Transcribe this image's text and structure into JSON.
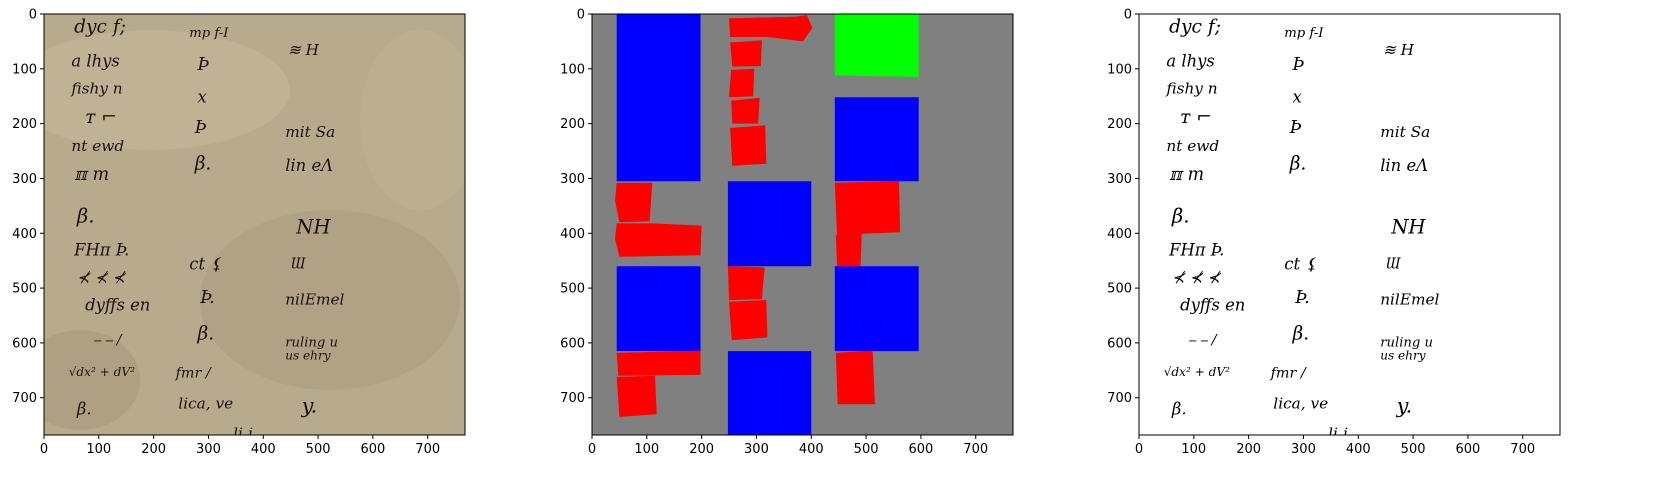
{
  "panels": [
    {
      "id": "original",
      "xlim": [
        0,
        768
      ],
      "ylim": [
        768,
        0
      ],
      "xticks": [
        "0",
        "100",
        "200",
        "300",
        "400",
        "500",
        "600",
        "700"
      ],
      "yticks": [
        "0",
        "100",
        "200",
        "300",
        "400",
        "500",
        "600",
        "700"
      ],
      "background": "#b8aa8c"
    },
    {
      "id": "segmentation",
      "xlim": [
        0,
        768
      ],
      "ylim": [
        768,
        0
      ],
      "xticks": [
        "0",
        "100",
        "200",
        "300",
        "400",
        "500",
        "600",
        "700"
      ],
      "yticks": [
        "0",
        "100",
        "200",
        "300",
        "400",
        "500",
        "600",
        "700"
      ],
      "background": "#808080",
      "colors": {
        "blue": "#0000ff",
        "red": "#ff0000",
        "green": "#00ff00"
      },
      "regions": [
        {
          "color": "blue",
          "pts": [
            [
              45,
              0
            ],
            [
              198,
              0
            ],
            [
              198,
              305
            ],
            [
              45,
              305
            ]
          ]
        },
        {
          "color": "blue",
          "pts": [
            [
              45,
              460
            ],
            [
              198,
              460
            ],
            [
              198,
              615
            ],
            [
              45,
              615
            ]
          ]
        },
        {
          "color": "blue",
          "pts": [
            [
              248,
              305
            ],
            [
              400,
              305
            ],
            [
              400,
              460
            ],
            [
              248,
              460
            ]
          ]
        },
        {
          "color": "blue",
          "pts": [
            [
              248,
              615
            ],
            [
              400,
              615
            ],
            [
              400,
              768
            ],
            [
              248,
              768
            ]
          ]
        },
        {
          "color": "blue",
          "pts": [
            [
              443,
              152
            ],
            [
              596,
              152
            ],
            [
              596,
              305
            ],
            [
              443,
              305
            ]
          ]
        },
        {
          "color": "blue",
          "pts": [
            [
              443,
              460
            ],
            [
              596,
              460
            ],
            [
              596,
              615
            ],
            [
              443,
              615
            ]
          ]
        },
        {
          "color": "green",
          "pts": [
            [
              443,
              0
            ],
            [
              596,
              0
            ],
            [
              596,
              115
            ],
            [
              443,
              112
            ]
          ]
        },
        {
          "color": "red",
          "pts": [
            [
              250,
              8
            ],
            [
              370,
              5
            ],
            [
              392,
              2
            ],
            [
              402,
              25
            ],
            [
              385,
              50
            ],
            [
              320,
              42
            ],
            [
              252,
              42
            ]
          ]
        },
        {
          "color": "red",
          "pts": [
            [
              252,
              52
            ],
            [
              310,
              48
            ],
            [
              308,
              95
            ],
            [
              256,
              96
            ]
          ]
        },
        {
          "color": "red",
          "pts": [
            [
              254,
              102
            ],
            [
              296,
              100
            ],
            [
              294,
              150
            ],
            [
              250,
              152
            ]
          ]
        },
        {
          "color": "red",
          "pts": [
            [
              254,
              158
            ],
            [
              306,
              153
            ],
            [
              303,
              200
            ],
            [
              256,
              200
            ]
          ]
        },
        {
          "color": "red",
          "pts": [
            [
              252,
              208
            ],
            [
              316,
              203
            ],
            [
              318,
              273
            ],
            [
              256,
              277
            ]
          ]
        },
        {
          "color": "red",
          "pts": [
            [
              45,
              308
            ],
            [
              110,
              308
            ],
            [
              105,
              378
            ],
            [
              50,
              380
            ],
            [
              42,
              340
            ]
          ]
        },
        {
          "color": "red",
          "pts": [
            [
              45,
              382
            ],
            [
              110,
              382
            ],
            [
              200,
              386
            ],
            [
              198,
              440
            ],
            [
              50,
              443
            ],
            [
              42,
              410
            ]
          ]
        },
        {
          "color": "red",
          "pts": [
            [
              248,
              460
            ],
            [
              315,
              462
            ],
            [
              310,
              520
            ],
            [
              250,
              522
            ]
          ]
        },
        {
          "color": "red",
          "pts": [
            [
              250,
              525
            ],
            [
              318,
              522
            ],
            [
              320,
              590
            ],
            [
              255,
              595
            ]
          ]
        },
        {
          "color": "red",
          "pts": [
            [
              45,
              618
            ],
            [
              198,
              614
            ],
            [
              198,
              658
            ],
            [
              48,
              660
            ]
          ]
        },
        {
          "color": "red",
          "pts": [
            [
              45,
              662
            ],
            [
              115,
              660
            ],
            [
              118,
              730
            ],
            [
              50,
              735
            ]
          ]
        },
        {
          "color": "red",
          "pts": [
            [
              443,
              308
            ],
            [
              560,
              305
            ],
            [
              562,
              398
            ],
            [
              447,
              403
            ]
          ]
        },
        {
          "color": "red",
          "pts": [
            [
              445,
              403
            ],
            [
              492,
              400
            ],
            [
              490,
              460
            ],
            [
              447,
              460
            ]
          ]
        },
        {
          "color": "red",
          "pts": [
            [
              445,
              618
            ],
            [
              512,
              614
            ],
            [
              516,
              712
            ],
            [
              448,
              712
            ]
          ]
        }
      ]
    },
    {
      "id": "binarized",
      "xlim": [
        0,
        768
      ],
      "ylim": [
        768,
        0
      ],
      "xticks": [
        "0",
        "100",
        "200",
        "300",
        "400",
        "500",
        "600",
        "700"
      ],
      "yticks": [
        "0",
        "100",
        "200",
        "300",
        "400",
        "500",
        "600",
        "700"
      ],
      "background": "#ffffff"
    }
  ],
  "handwriting": [
    {
      "text": "dyc f;",
      "x": 55,
      "y": 10,
      "s": 34
    },
    {
      "text": "a lhys",
      "x": 50,
      "y": 75,
      "s": 30
    },
    {
      "text": "fishy n",
      "x": 50,
      "y": 125,
      "s": 28
    },
    {
      "text": "ᴛ ⌐",
      "x": 75,
      "y": 175,
      "s": 34
    },
    {
      "text": "nt ewd",
      "x": 50,
      "y": 230,
      "s": 28
    },
    {
      "text": "ℼ  m",
      "x": 55,
      "y": 280,
      "s": 32
    },
    {
      "text": "β.",
      "x": 60,
      "y": 355,
      "s": 36
    },
    {
      "text": "FHπ Þ.",
      "x": 55,
      "y": 420,
      "s": 30
    },
    {
      "text": "⊀ ⊀ ⊀",
      "x": 60,
      "y": 470,
      "s": 28
    },
    {
      "text": "dyffs en",
      "x": 75,
      "y": 520,
      "s": 30
    },
    {
      "text": "⎯ ⎯ /",
      "x": 90,
      "y": 585,
      "s": 26
    },
    {
      "text": "√dx² + dV²",
      "x": 45,
      "y": 645,
      "s": 22
    },
    {
      "text": "β.",
      "x": 60,
      "y": 710,
      "s": 30
    },
    {
      "text": "mp f-I",
      "x": 265,
      "y": 25,
      "s": 24
    },
    {
      "text": "Þ",
      "x": 280,
      "y": 80,
      "s": 32
    },
    {
      "text": "x",
      "x": 280,
      "y": 140,
      "s": 30
    },
    {
      "text": "Þ",
      "x": 275,
      "y": 195,
      "s": 32
    },
    {
      "text": "β.",
      "x": 275,
      "y": 260,
      "s": 34
    },
    {
      "text": "ct ⚸",
      "x": 265,
      "y": 445,
      "s": 30
    },
    {
      "text": "Þ.",
      "x": 285,
      "y": 505,
      "s": 32
    },
    {
      "text": "β.",
      "x": 280,
      "y": 570,
      "s": 34
    },
    {
      "text": "fmr /",
      "x": 240,
      "y": 645,
      "s": 26
    },
    {
      "text": "lica, ve",
      "x": 245,
      "y": 700,
      "s": 28
    },
    {
      "text": "li j",
      "x": 345,
      "y": 755,
      "s": 28
    },
    {
      "text": "≋ H",
      "x": 445,
      "y": 55,
      "s": 28
    },
    {
      "text": "mit Sa",
      "x": 440,
      "y": 205,
      "s": 28
    },
    {
      "text": "lin eΛ",
      "x": 440,
      "y": 265,
      "s": 30
    },
    {
      "text": "NH",
      "x": 460,
      "y": 375,
      "s": 36
    },
    {
      "text": "Ɯ",
      "x": 450,
      "y": 445,
      "s": 28
    },
    {
      "text": "nilEmel",
      "x": 440,
      "y": 510,
      "s": 28
    },
    {
      "text": "ruling u",
      "x": 440,
      "y": 590,
      "s": 24
    },
    {
      "text": "us ehry",
      "x": 440,
      "y": 615,
      "s": 22
    },
    {
      "text": "y.",
      "x": 470,
      "y": 700,
      "s": 38
    }
  ]
}
